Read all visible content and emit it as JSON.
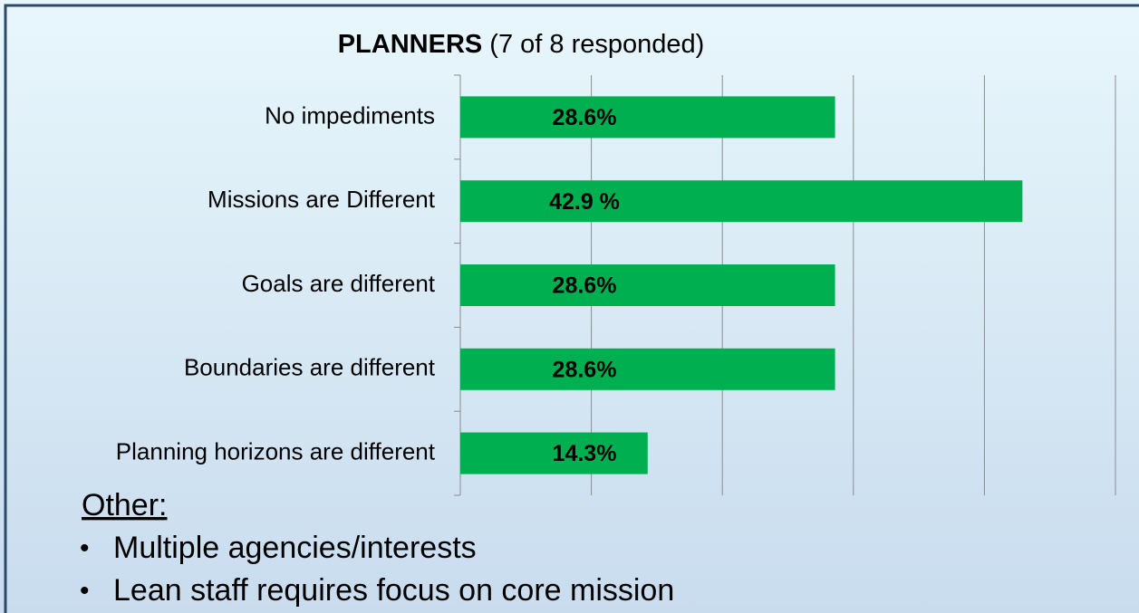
{
  "chart_data": {
    "type": "hbar",
    "title": "PLANNERS",
    "subtitle": "(7 of 8 responded)",
    "categories": [
      "No impediments",
      "Missions are Different",
      "Goals are different",
      "Boundaries are different",
      "Planning horizons are different"
    ],
    "values": [
      28.6,
      42.9,
      28.6,
      28.6,
      14.3
    ],
    "value_labels": [
      "28.6%",
      "42.9 %",
      "28.6%",
      "28.6%",
      "14.3%"
    ],
    "color": "#00b050",
    "xlim": [
      0,
      50
    ],
    "xticks": [
      0,
      10,
      20,
      30,
      40,
      50
    ],
    "grid": true
  },
  "notes": {
    "heading": "Other:",
    "items": [
      "Multiple agencies/interests",
      "Lean staff requires focus on core mission"
    ]
  }
}
